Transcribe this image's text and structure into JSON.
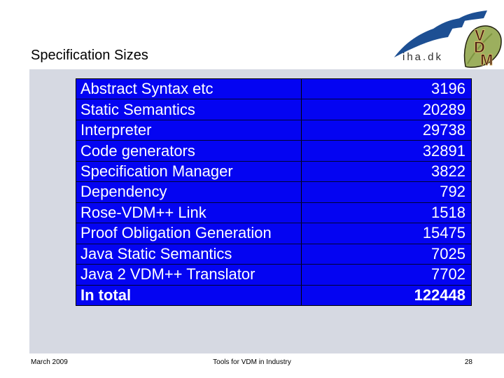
{
  "slide_title": "Specification Sizes",
  "logos": {
    "iha": {
      "label": "iha.dk",
      "swoosh_color": "#1D4F93"
    },
    "vdm": {
      "letters": [
        "V",
        "D",
        "M"
      ],
      "leaf_color": "#9CAF5E",
      "leaf_shade_color": "#7E9440",
      "letter_color": "#4A2013",
      "letter_outline_color": "#D8B86A"
    }
  },
  "table": {
    "rows": [
      {
        "label": "Abstract Syntax etc",
        "value": "3196"
      },
      {
        "label": "Static Semantics",
        "value": "20289"
      },
      {
        "label": "Interpreter",
        "value": "29738"
      },
      {
        "label": "Code generators",
        "value": "32891"
      },
      {
        "label": "Specification Manager",
        "value": "3822"
      },
      {
        "label": "Dependency",
        "value": "792"
      },
      {
        "label": "Rose-VDM++ Link",
        "value": "1518"
      },
      {
        "label": "Proof Obligation Generation",
        "value": "15475"
      },
      {
        "label": "Java Static Semantics",
        "value": "7025"
      },
      {
        "label": "Java 2 VDM++ Translator",
        "value": "7702"
      },
      {
        "label": "In total",
        "value": "122448",
        "bold": true
      }
    ]
  },
  "footer": {
    "date": "March 2009",
    "center_text": "Tools for VDM in Industry",
    "page_number": "28"
  },
  "colors": {
    "table_bg": "#0404F2",
    "table_text": "#FFFFFF",
    "row_divider": "#000336",
    "table_border": "#000000",
    "panel_bg": "#D6D9E2",
    "slide_bg": "#FFFFFF",
    "title_text": "#000000"
  }
}
